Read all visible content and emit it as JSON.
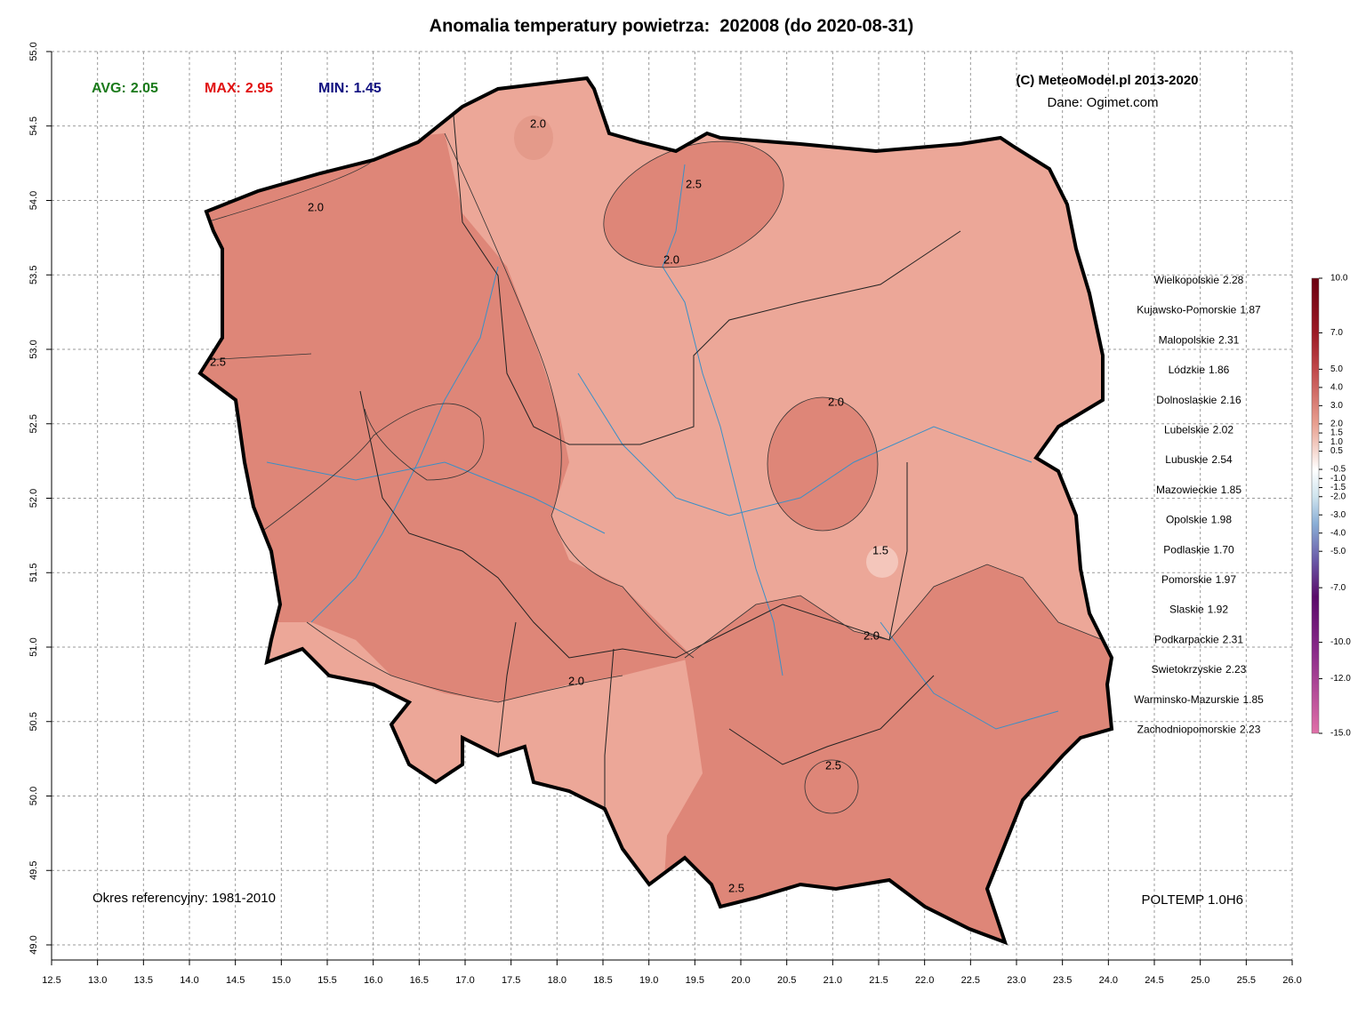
{
  "header": {
    "title": "Anomalia temperatury powietrza:  202008 (do 2020-08-31)"
  },
  "stats": [
    {
      "label": "AVG:",
      "value": "2.05"
    },
    {
      "label": "MAX:",
      "value": "2.95"
    },
    {
      "label": "MIN:",
      "value": "1.45"
    }
  ],
  "credits": {
    "copyright": "(C) MeteoModel.pl 2013-2020",
    "source": "Dane: Ogimet.com"
  },
  "regions": [
    {
      "name": "Wielkopolskie",
      "value": "2.28"
    },
    {
      "name": "Kujawsko-Pomorskie",
      "value": "1.87"
    },
    {
      "name": "Malopolskie",
      "value": "2.31"
    },
    {
      "name": "Lódzkie",
      "value": "1.86"
    },
    {
      "name": "Dolnoslaskie",
      "value": "2.16"
    },
    {
      "name": "Lubelskie",
      "value": "2.02"
    },
    {
      "name": "Lubuskie",
      "value": "2.54"
    },
    {
      "name": "Mazowieckie",
      "value": "1.85"
    },
    {
      "name": "Opolskie",
      "value": "1.98"
    },
    {
      "name": "Podlaskie",
      "value": "1.70"
    },
    {
      "name": "Pomorskie",
      "value": "1.97"
    },
    {
      "name": "Slaskie",
      "value": "1.92"
    },
    {
      "name": "Podkarpackie",
      "value": "2.31"
    },
    {
      "name": "Swietokrzyskie",
      "value": "2.23"
    },
    {
      "name": "Warminsko-Mazurskie",
      "value": "1.85"
    },
    {
      "name": "Zachodniopomorskie",
      "value": "2.23"
    }
  ],
  "colorbar": {
    "ticks": [
      {
        "value": 10,
        "label": "10.0"
      },
      {
        "value": 7,
        "label": "7.0"
      },
      {
        "value": 5,
        "label": "5.0"
      },
      {
        "value": 4,
        "label": "4.0"
      },
      {
        "value": 3,
        "label": "3.0"
      },
      {
        "value": 2,
        "label": "2.0"
      },
      {
        "value": 1.5,
        "label": "1.5"
      },
      {
        "value": 1,
        "label": "1.0"
      },
      {
        "value": 0.5,
        "label": "0.5"
      },
      {
        "value": -0.5,
        "label": "-0.5"
      },
      {
        "value": -1,
        "label": "-1.0"
      },
      {
        "value": -1.5,
        "label": "-1.5"
      },
      {
        "value": -2,
        "label": "-2.0"
      },
      {
        "value": -3,
        "label": "-3.0"
      },
      {
        "value": -4,
        "label": "-4.0"
      },
      {
        "value": -5,
        "label": "-5.0"
      },
      {
        "value": -7,
        "label": "-7.0"
      },
      {
        "value": -10,
        "label": "-10.0"
      },
      {
        "value": -12,
        "label": "-12.0"
      },
      {
        "value": -15,
        "label": "-15.0"
      }
    ]
  },
  "axes": {
    "x_ticks": [
      "12.5",
      "13.0",
      "13.5",
      "14.0",
      "14.5",
      "15.0",
      "15.5",
      "16.0",
      "16.5",
      "17.0",
      "17.5",
      "18.0",
      "18.5",
      "19.0",
      "19.5",
      "20.0",
      "20.5",
      "21.0",
      "21.5",
      "22.0",
      "22.5",
      "23.0",
      "23.5",
      "24.0",
      "24.5",
      "25.0",
      "25.5",
      "26.0"
    ],
    "y_ticks": [
      "49.0",
      "49.5",
      "50.0",
      "50.5",
      "51.0",
      "51.5",
      "52.0",
      "52.5",
      "53.0",
      "53.5",
      "54.0",
      "54.5",
      "55.0"
    ]
  },
  "contour_labels": [
    "2.0",
    "2.0",
    "2.5",
    "2.0",
    "2.5",
    "2.0",
    "1.5",
    "2.0",
    "2.0",
    "2.5",
    "2.5"
  ],
  "footer": {
    "reference": "Okres referencyjny: 1981-2010",
    "model": "POLTEMP 1.0H6"
  }
}
